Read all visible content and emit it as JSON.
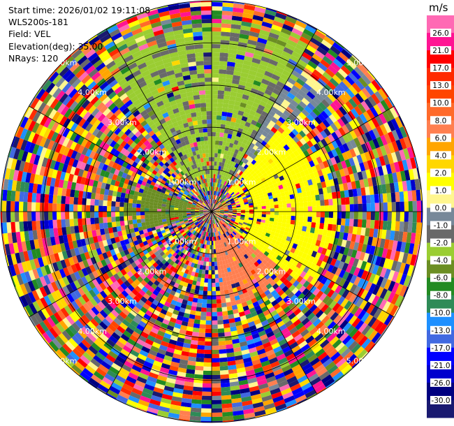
{
  "header": {
    "start_time": "Start time: 2026/01/02 19:11:08",
    "instrument": "WLS200s-181",
    "field": "Field: VEL",
    "elevation": "Elevation(deg): 35.00",
    "nrays": "NRays: 120"
  },
  "colorbar": {
    "unit": "m/s",
    "levels": [
      {
        "label": "26.0",
        "color": "#ff1493"
      },
      {
        "label": "21.0",
        "color": "#ff0000"
      },
      {
        "label": "17.0",
        "color": "#ff2a00"
      },
      {
        "label": "13.0",
        "color": "#ff4500"
      },
      {
        "label": "10.0",
        "color": "#ff6a2a"
      },
      {
        "label": "8.0",
        "color": "#ff7f50"
      },
      {
        "label": "6.0",
        "color": "#ffa500"
      },
      {
        "label": "4.0",
        "color": "#ffd700"
      },
      {
        "label": "2.0",
        "color": "#ffff00"
      },
      {
        "label": "1.0",
        "color": "#fff68f"
      },
      {
        "label": "0.0",
        "color": "#778899"
      },
      {
        "label": "-1.0",
        "color": "#696969"
      },
      {
        "label": "-2.0",
        "color": "#9acd32"
      },
      {
        "label": "-4.0",
        "color": "#6b8e23"
      },
      {
        "label": "-6.0",
        "color": "#228b22"
      },
      {
        "label": "-8.0",
        "color": "#2e8b57"
      },
      {
        "label": "-10.0",
        "color": "#1e90ff"
      },
      {
        "label": "-13.0",
        "color": "#4169e1"
      },
      {
        "label": "-17.0",
        "color": "#0000ff"
      },
      {
        "label": "-21.0",
        "color": "#0000cd"
      },
      {
        "label": "-26.0",
        "color": "#000080"
      },
      {
        "label": "-30.0",
        "color": "#191970"
      }
    ],
    "top_color": "#ff69b4"
  },
  "chart_data": {
    "type": "heatmap",
    "projection": "polar (PPI)",
    "field": "VEL",
    "unit": "m/s",
    "elevation_deg": 35.0,
    "nrays": 120,
    "range_rings_km": [
      1,
      2,
      3,
      4,
      5
    ],
    "range_labels": [
      {
        "text": "1.00km",
        "km": 1.0
      },
      {
        "text": "2.00km",
        "km": 2.0
      },
      {
        "text": "3.00km",
        "km": 3.0
      },
      {
        "text": "4.00km",
        "km": 4.0
      },
      {
        "text": "5.00km",
        "km": 5.0
      }
    ],
    "max_range_km": 5.0,
    "grid": true,
    "regions": [
      {
        "description": "positive velocities (yellow) to the east",
        "az_from": 40,
        "az_to": 130,
        "range_km": [
          0.6,
          3.0
        ],
        "value": 2.0
      },
      {
        "description": "positive velocities (salmon/orange) to the south-east",
        "az_from": 130,
        "az_to": 175,
        "range_km": [
          0.3,
          2.3
        ],
        "value": 8.0
      },
      {
        "description": "negative velocities (green) to the north",
        "az_from": 325,
        "az_to": 30,
        "range_km": [
          0.5,
          4.6
        ],
        "value": -2.0
      },
      {
        "description": "negative velocities (olive) to the west",
        "az_from": 255,
        "az_to": 290,
        "range_km": [
          0.2,
          2.1
        ],
        "value": -4.0
      },
      {
        "description": "near-zero velocities (grey) north-north-east",
        "az_from": 25,
        "az_to": 45,
        "range_km": [
          1.0,
          4.0
        ],
        "value": 0.0
      }
    ]
  }
}
